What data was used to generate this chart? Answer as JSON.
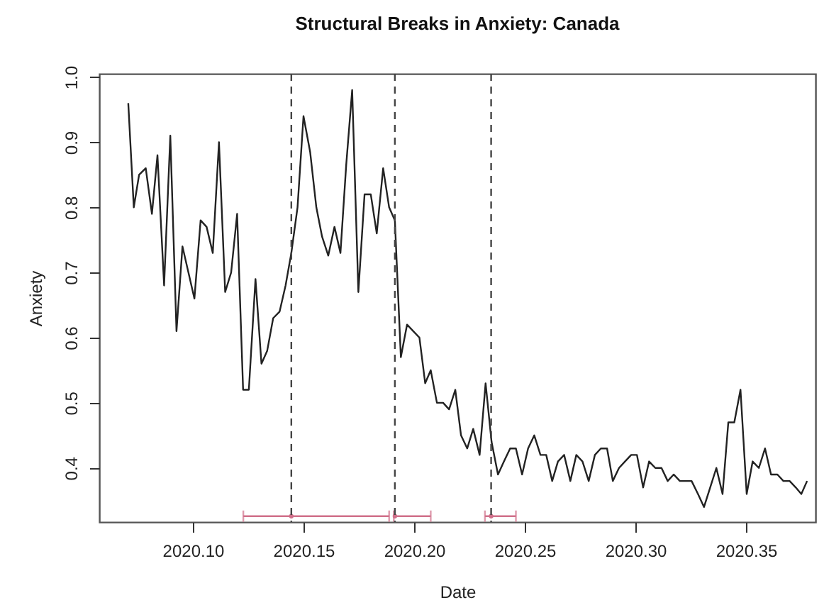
{
  "chart_data": {
    "type": "line",
    "title": "Structural Breaks in Anxiety: Canada",
    "xlabel": "Date",
    "ylabel": "Anxiety",
    "xlim": [
      2020.0577,
      2020.3814
    ],
    "ylim": [
      0.317,
      1.005
    ],
    "xticks": [
      {
        "value": 2020.1,
        "label": "2020.10"
      },
      {
        "value": 2020.15,
        "label": "2020.15"
      },
      {
        "value": 2020.2,
        "label": "2020.20"
      },
      {
        "value": 2020.25,
        "label": "2020.25"
      },
      {
        "value": 2020.3,
        "label": "2020.30"
      },
      {
        "value": 2020.35,
        "label": "2020.35"
      }
    ],
    "yticks": [
      0.4,
      0.5,
      0.6,
      0.7,
      0.8,
      0.9,
      {
        "value": 1.0,
        "label": "1.0"
      }
    ],
    "series": [
      {
        "color": "#222222",
        "line_style": "solid",
        "x": [
          2020.0708,
          2020.0733,
          2020.0757,
          2020.0787,
          2020.0815,
          2020.084,
          2020.087,
          2020.0898,
          2020.0926,
          2020.0953,
          2020.098,
          2020.1007,
          2020.1035,
          2020.1062,
          2020.109,
          2020.1118,
          2020.1146,
          2020.1173,
          2020.12,
          2020.1227,
          2020.1253,
          2020.1283,
          2020.131,
          2020.1336,
          2020.1363,
          2020.1392,
          2020.1419,
          2020.1445,
          2020.1473,
          2020.15,
          2020.153,
          2020.1558,
          2020.1584,
          2020.1612,
          2020.164,
          2020.1667,
          2020.1693,
          2020.172,
          2020.1748,
          2020.1776,
          2020.1804,
          2020.1831,
          2020.186,
          2020.1887,
          2020.1913,
          2020.194,
          2020.1968,
          2020.1996,
          2020.2024,
          2020.205,
          2020.2075,
          2020.2103,
          2020.2131,
          2020.2158,
          2020.2186,
          2020.2212,
          2020.224,
          2020.2267,
          2020.2296,
          2020.2323,
          2020.235,
          2020.2379,
          2020.2406,
          2020.2434,
          2020.246,
          2020.2488,
          2020.2515,
          2020.2543,
          2020.2571,
          2020.2597,
          2020.2624,
          2020.265,
          2020.2678,
          2020.2706,
          2020.2733,
          2020.2761,
          2020.2789,
          2020.2817,
          2020.2844,
          2020.2872,
          2020.2898,
          2020.2926,
          2020.2953,
          2020.2981,
          2020.3007,
          2020.3035,
          2020.3062,
          2020.309,
          2020.3118,
          2020.3146,
          2020.3173,
          2020.3201,
          2020.3229,
          2020.3254,
          2020.3283,
          2020.331,
          2020.3338,
          2020.3366,
          2020.3394,
          2020.342,
          2020.3447,
          2020.3475,
          2020.3503,
          2020.353,
          2020.3558,
          2020.3586,
          2020.3613,
          2020.3642,
          2020.3669,
          2020.3697,
          2020.3725,
          2020.375,
          2020.3776
        ],
        "values": [
          0.96,
          0.8,
          0.85,
          0.86,
          0.79,
          0.88,
          0.68,
          0.91,
          0.61,
          0.74,
          0.7,
          0.66,
          0.78,
          0.77,
          0.73,
          0.9,
          0.67,
          0.7,
          0.79,
          0.52,
          0.52,
          0.69,
          0.56,
          0.58,
          0.63,
          0.64,
          0.68,
          0.73,
          0.8,
          0.94,
          0.885,
          0.8,
          0.755,
          0.726,
          0.77,
          0.73,
          0.865,
          0.98,
          0.67,
          0.82,
          0.82,
          0.76,
          0.86,
          0.8,
          0.78,
          0.57,
          0.62,
          0.61,
          0.6,
          0.53,
          0.55,
          0.5,
          0.5,
          0.49,
          0.52,
          0.45,
          0.43,
          0.46,
          0.42,
          0.53,
          0.44,
          0.39,
          0.41,
          0.43,
          0.43,
          0.39,
          0.43,
          0.45,
          0.42,
          0.42,
          0.38,
          0.41,
          0.42,
          0.38,
          0.42,
          0.41,
          0.38,
          0.42,
          0.43,
          0.43,
          0.38,
          0.4,
          0.41,
          0.42,
          0.42,
          0.37,
          0.41,
          0.4,
          0.4,
          0.38,
          0.39,
          0.38,
          0.38,
          0.38,
          0.36,
          0.34,
          0.37,
          0.4,
          0.36,
          0.47,
          0.47,
          0.52,
          0.36,
          0.41,
          0.4,
          0.43,
          0.39,
          0.39,
          0.38,
          0.38,
          0.37,
          0.36,
          0.38
        ]
      },
      {
        "type": "scatter",
        "color": "#d0708a",
        "x": [
          2020.1445,
          2020.1913,
          2020.2348
        ],
        "values": [
          0.326,
          0.326,
          0.326
        ],
        "xerrors": [
          [
            2020.1228,
            2020.1887
          ],
          [
            2020.1908,
            2020.2075
          ],
          [
            2020.232,
            2020.246
          ]
        ]
      }
    ],
    "ref_lines": [
      {
        "axis": "x",
        "value": 2020.1445,
        "color": "#444444",
        "line_style": "dashed"
      },
      {
        "axis": "x",
        "value": 2020.1913,
        "color": "#444444",
        "line_style": "dashed"
      },
      {
        "axis": "x",
        "value": 2020.2348,
        "color": "#444444",
        "line_style": "dashed"
      }
    ]
  }
}
